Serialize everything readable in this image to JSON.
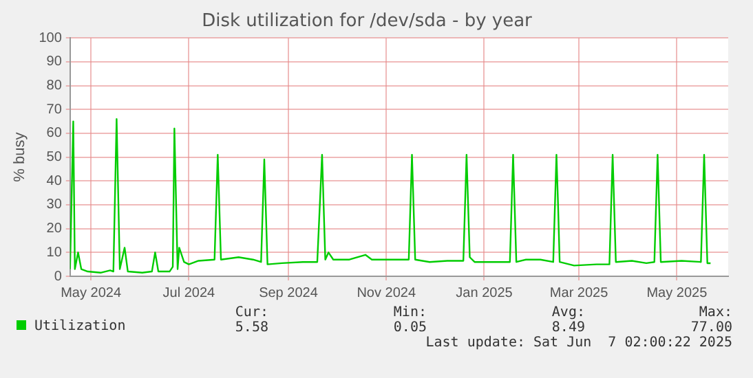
{
  "chart_data": {
    "type": "line",
    "title": "Disk utilization for /dev/sda - by year",
    "ylabel": "% busy",
    "xlim": [
      "2024-05-02",
      "2025-06-16"
    ],
    "xticks": [
      {
        "value": "2024-05-15",
        "label": "May 2024"
      },
      {
        "value": "2024-07-15",
        "label": "Jul 2024"
      },
      {
        "value": "2024-09-15",
        "label": "Sep 2024"
      },
      {
        "value": "2024-11-15",
        "label": "Nov 2024"
      },
      {
        "value": "2025-01-15",
        "label": "Jan 2025"
      },
      {
        "value": "2025-03-15",
        "label": "Mar 2025"
      },
      {
        "value": "2025-05-15",
        "label": "May 2025"
      }
    ],
    "ylim": [
      0,
      100
    ],
    "yticks": [
      0,
      10,
      20,
      30,
      40,
      50,
      60,
      70,
      80,
      90,
      100
    ],
    "grid": true,
    "legend": "bottom",
    "marker": "none",
    "line_style": "solid",
    "x": [
      "2024-05-02",
      "2024-05-04",
      "2024-05-05",
      "2024-05-07",
      "2024-05-09",
      "2024-05-13",
      "2024-05-21",
      "2024-05-27",
      "2024-05-29",
      "2024-05-31",
      "2024-06-02",
      "2024-06-05",
      "2024-06-07",
      "2024-06-16",
      "2024-06-22",
      "2024-06-24",
      "2024-06-26",
      "2024-07-03",
      "2024-07-05",
      "2024-07-06",
      "2024-07-08",
      "2024-07-09",
      "2024-07-12",
      "2024-07-15",
      "2024-07-21",
      "2024-07-31",
      "2024-08-02",
      "2024-08-04",
      "2024-08-15",
      "2024-08-24",
      "2024-08-29",
      "2024-08-31",
      "2024-09-02",
      "2024-09-11",
      "2024-09-24",
      "2024-10-03",
      "2024-10-06",
      "2024-10-08",
      "2024-10-10",
      "2024-10-13",
      "2024-10-23",
      "2024-11-02",
      "2024-11-06",
      "2024-11-21",
      "2024-11-29",
      "2024-12-01",
      "2024-12-03",
      "2024-12-12",
      "2024-12-23",
      "2025-01-02",
      "2025-01-04",
      "2025-01-06",
      "2025-01-09",
      "2025-01-23",
      "2025-01-31",
      "2025-02-02",
      "2025-02-04",
      "2025-02-10",
      "2025-02-19",
      "2025-02-27",
      "2025-03-01",
      "2025-03-02",
      "2025-03-03",
      "2025-03-12",
      "2025-03-26",
      "2025-04-03",
      "2025-04-05",
      "2025-04-07",
      "2025-04-17",
      "2025-04-26",
      "2025-05-01",
      "2025-05-03",
      "2025-05-05",
      "2025-05-18",
      "2025-05-30",
      "2025-06-01",
      "2025-06-03",
      "2025-06-05"
    ],
    "series": [
      {
        "name": "Utilization",
        "color": "#00cc00",
        "values": [
          3,
          65,
          3,
          10,
          3,
          2,
          1.5,
          2.5,
          2,
          66,
          3,
          12,
          2,
          1.5,
          2,
          10,
          2,
          2,
          4,
          62,
          3,
          12,
          6,
          5,
          6.5,
          7,
          51,
          7,
          8,
          7,
          6,
          49,
          5,
          5.5,
          6,
          6,
          51,
          7,
          10,
          7,
          7,
          9,
          7,
          7,
          7,
          51,
          7,
          6,
          6.5,
          6.5,
          51,
          8,
          6,
          6,
          6,
          51,
          6,
          7,
          7,
          6,
          51,
          30,
          6,
          4.5,
          5,
          5,
          51,
          6,
          6.5,
          5.5,
          6,
          51,
          6,
          6.5,
          6,
          51,
          5.5,
          5.5
        ]
      }
    ],
    "annotations": [
      "Cur:",
      "Min:",
      "Avg:",
      "Max:",
      "5.58",
      "0.05",
      "8.49",
      "77.00",
      "Last update: Sat Jun  7 02:00:22 2025"
    ]
  }
}
